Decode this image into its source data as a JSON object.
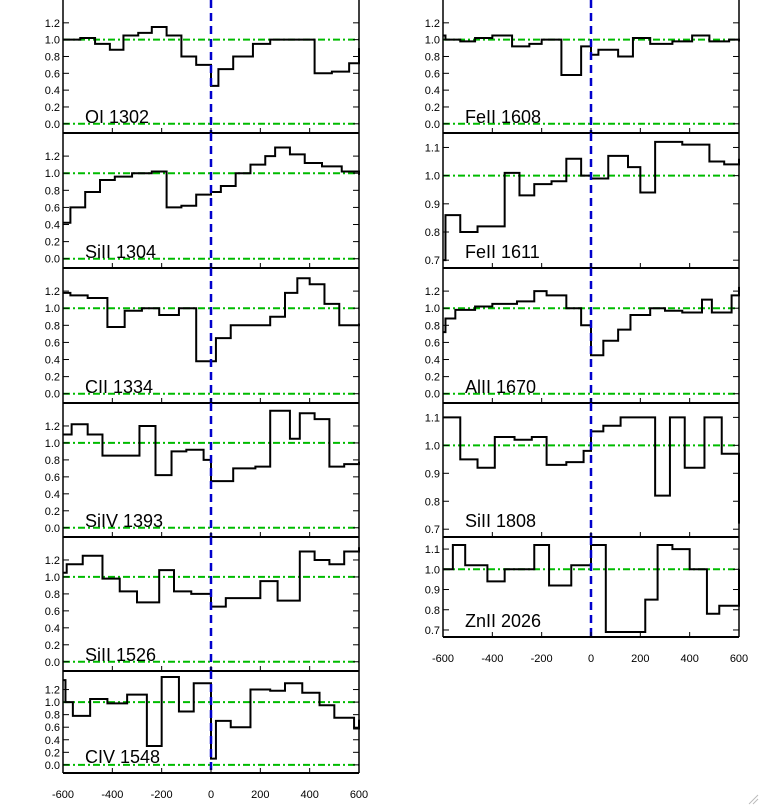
{
  "colors": {
    "spectrum": "#000000",
    "continuum": "#00bb00",
    "zero_velocity": "#0000cc",
    "axis": "#000000"
  },
  "chart_data": [
    {
      "type": "line",
      "label": "OI 1302",
      "yticks": [
        0.0,
        0.2,
        0.4,
        0.6,
        0.8,
        1.0,
        1.2
      ],
      "ytick_labels": [
        "0.0",
        "0.2",
        "0.4",
        "0.6",
        "0.8",
        "1.0",
        "1.2"
      ],
      "ylim": [
        -0.05,
        1.4
      ],
      "xlim": [
        -600,
        600
      ],
      "show_xticks": false,
      "x": [
        -600,
        -530,
        -470,
        -410,
        -355,
        -295,
        -240,
        -180,
        -120,
        -60,
        0,
        30,
        90,
        170,
        240,
        330,
        420,
        490,
        560,
        600
      ],
      "y": [
        1.0,
        1.02,
        0.95,
        0.88,
        1.05,
        1.08,
        1.15,
        1.05,
        0.8,
        0.7,
        0.45,
        0.65,
        0.8,
        0.95,
        1.0,
        1.0,
        0.6,
        0.62,
        0.72,
        0.9
      ]
    },
    {
      "type": "line",
      "label": "SiII 1304",
      "yticks": [
        0.0,
        0.2,
        0.4,
        0.6,
        0.8,
        1.0,
        1.2
      ],
      "ytick_labels": [
        "0.0",
        "0.2",
        "0.4",
        "0.6",
        "0.8",
        "1.0",
        "1.2"
      ],
      "ylim": [
        -0.05,
        1.4
      ],
      "xlim": [
        -600,
        600
      ],
      "show_xticks": false,
      "x": [
        -600,
        -570,
        -510,
        -450,
        -390,
        -320,
        -240,
        -180,
        -120,
        -60,
        0,
        40,
        100,
        160,
        220,
        260,
        320,
        380,
        450,
        530,
        600
      ],
      "y": [
        0.42,
        0.6,
        0.78,
        0.92,
        0.96,
        1.0,
        1.02,
        0.6,
        0.62,
        0.75,
        0.78,
        0.85,
        1.0,
        1.1,
        1.2,
        1.3,
        1.22,
        1.12,
        1.08,
        1.02,
        0.98
      ]
    },
    {
      "type": "line",
      "label": "CII 1334",
      "yticks": [
        0.0,
        0.2,
        0.4,
        0.6,
        0.8,
        1.0,
        1.2
      ],
      "ytick_labels": [
        "0.0",
        "0.2",
        "0.4",
        "0.6",
        "0.8",
        "1.0",
        "1.2"
      ],
      "ylim": [
        -0.05,
        1.4
      ],
      "xlim": [
        -600,
        600
      ],
      "show_xticks": false,
      "x": [
        -600,
        -570,
        -500,
        -420,
        -350,
        -280,
        -210,
        -130,
        -60,
        0,
        20,
        80,
        160,
        240,
        300,
        350,
        400,
        460,
        520,
        600
      ],
      "y": [
        1.18,
        1.15,
        1.12,
        0.78,
        0.97,
        1.0,
        0.92,
        1.0,
        0.38,
        0.38,
        0.65,
        0.8,
        0.8,
        0.9,
        1.18,
        1.35,
        1.28,
        1.05,
        0.8,
        0.82
      ]
    },
    {
      "type": "line",
      "label": "SiIV 1393",
      "yticks": [
        0.0,
        0.2,
        0.4,
        0.6,
        0.8,
        1.0,
        1.2
      ],
      "ytick_labels": [
        "0.0",
        "0.2",
        "0.4",
        "0.6",
        "0.8",
        "1.0",
        "1.2"
      ],
      "ylim": [
        -0.05,
        1.4
      ],
      "xlim": [
        -600,
        600
      ],
      "show_xticks": false,
      "x": [
        -600,
        -565,
        -500,
        -440,
        -360,
        -290,
        -225,
        -160,
        -100,
        -30,
        0,
        30,
        90,
        180,
        240,
        320,
        360,
        420,
        480,
        540,
        600
      ],
      "y": [
        1.1,
        1.22,
        1.1,
        0.85,
        0.85,
        1.2,
        0.62,
        0.9,
        0.92,
        0.8,
        0.55,
        0.55,
        0.7,
        0.72,
        1.38,
        1.05,
        1.35,
        1.28,
        0.72,
        0.75,
        0.78
      ]
    },
    {
      "type": "line",
      "label": "SiII 1526",
      "yticks": [
        0.0,
        0.2,
        0.4,
        0.6,
        0.8,
        1.0,
        1.2
      ],
      "ytick_labels": [
        "0.0",
        "0.2",
        "0.4",
        "0.6",
        "0.8",
        "1.0",
        "1.2"
      ],
      "ylim": [
        -0.05,
        1.4
      ],
      "xlim": [
        -600,
        600
      ],
      "show_xticks": false,
      "x": [
        -600,
        -585,
        -520,
        -440,
        -370,
        -300,
        -210,
        -150,
        -80,
        0,
        60,
        130,
        200,
        270,
        360,
        420,
        480,
        540,
        600
      ],
      "y": [
        1.05,
        1.15,
        1.25,
        0.98,
        0.83,
        0.7,
        1.08,
        0.83,
        0.8,
        0.65,
        0.75,
        0.75,
        0.95,
        0.72,
        1.3,
        1.2,
        1.15,
        1.3,
        1.35
      ]
    },
    {
      "type": "line",
      "label": "CIV 1548",
      "yticks": [
        0.0,
        0.2,
        0.4,
        0.6,
        0.8,
        1.0,
        1.2
      ],
      "ytick_labels": [
        "0.0",
        "0.2",
        "0.4",
        "0.6",
        "0.8",
        "1.0",
        "1.2"
      ],
      "ylim": [
        -0.05,
        1.4
      ],
      "xlim": [
        -600,
        600
      ],
      "show_xticks": true,
      "xticks": [
        -600,
        -400,
        -200,
        0,
        200,
        400,
        600
      ],
      "xtick_labels": [
        "-600",
        "-400",
        "-200",
        "0",
        "200",
        "400",
        "600"
      ],
      "x": [
        -600,
        -590,
        -560,
        -490,
        -420,
        -340,
        -260,
        -200,
        -130,
        -70,
        0,
        20,
        80,
        160,
        240,
        300,
        370,
        440,
        500,
        580,
        600
      ],
      "y": [
        1.35,
        1.0,
        0.78,
        1.05,
        0.98,
        1.12,
        0.3,
        1.4,
        0.85,
        1.3,
        0.1,
        0.7,
        0.6,
        1.2,
        1.18,
        1.3,
        1.15,
        0.95,
        0.75,
        0.58,
        0.72
      ]
    },
    {
      "type": "line",
      "label": "FeII 1608",
      "yticks": [
        0.0,
        0.2,
        0.4,
        0.6,
        0.8,
        1.0,
        1.2
      ],
      "ytick_labels": [
        "0.0",
        "0.2",
        "0.4",
        "0.6",
        "0.8",
        "1.0",
        "1.2"
      ],
      "ylim": [
        -0.05,
        1.4
      ],
      "xlim": [
        -600,
        600
      ],
      "show_xticks": false,
      "x": [
        -600,
        -590,
        -530,
        -470,
        -400,
        -320,
        -250,
        -200,
        -120,
        -40,
        0,
        30,
        110,
        170,
        240,
        330,
        410,
        480,
        560,
        600
      ],
      "y": [
        1.05,
        1.0,
        0.98,
        1.02,
        1.05,
        0.92,
        0.95,
        1.0,
        0.58,
        0.92,
        0.82,
        0.88,
        0.8,
        1.02,
        0.95,
        0.98,
        1.05,
        0.98,
        1.0,
        0.98
      ]
    },
    {
      "type": "line",
      "label": "FeII 1611",
      "yticks": [
        0.7,
        0.8,
        0.9,
        1.0,
        1.1
      ],
      "ytick_labels": [
        "0.7",
        "0.8",
        "0.9",
        "1.0",
        "1.1"
      ],
      "ylim": [
        0.69,
        1.13
      ],
      "xlim": [
        -600,
        600
      ],
      "show_xticks": false,
      "x": [
        -600,
        -590,
        -530,
        -460,
        -350,
        -290,
        -230,
        -160,
        -100,
        -40,
        0,
        70,
        150,
        200,
        260,
        310,
        370,
        480,
        540,
        600
      ],
      "y": [
        0.7,
        0.86,
        0.8,
        0.82,
        1.01,
        0.93,
        0.97,
        0.98,
        1.06,
        1.0,
        0.99,
        1.07,
        1.03,
        0.94,
        1.12,
        1.12,
        1.11,
        1.05,
        1.04,
        1.06
      ]
    },
    {
      "type": "line",
      "label": "AlII 1670",
      "yticks": [
        0.0,
        0.2,
        0.4,
        0.6,
        0.8,
        1.0,
        1.2
      ],
      "ytick_labels": [
        "0.0",
        "0.2",
        "0.4",
        "0.6",
        "0.8",
        "1.0",
        "1.2"
      ],
      "ylim": [
        -0.05,
        1.4
      ],
      "xlim": [
        -600,
        600
      ],
      "show_xticks": false,
      "x": [
        -600,
        -590,
        -550,
        -470,
        -400,
        -300,
        -230,
        -180,
        -100,
        -40,
        0,
        50,
        110,
        160,
        240,
        300,
        370,
        450,
        490,
        570,
        600
      ],
      "y": [
        0.72,
        0.88,
        0.98,
        1.02,
        1.05,
        1.08,
        1.2,
        1.15,
        1.0,
        0.8,
        0.45,
        0.62,
        0.75,
        0.92,
        1.0,
        0.97,
        0.95,
        1.1,
        0.95,
        1.15,
        1.25
      ]
    },
    {
      "type": "line",
      "label": "SiII 1808",
      "yticks": [
        0.7,
        0.8,
        0.9,
        1.0,
        1.1
      ],
      "ytick_labels": [
        "0.7",
        "0.8",
        "0.9",
        "1.0",
        "1.1"
      ],
      "ylim": [
        0.69,
        1.13
      ],
      "xlim": [
        -600,
        600
      ],
      "show_xticks": false,
      "x": [
        -600,
        -530,
        -460,
        -390,
        -310,
        -240,
        -180,
        -100,
        -30,
        0,
        50,
        120,
        220,
        260,
        320,
        380,
        460,
        530,
        600
      ],
      "y": [
        1.1,
        0.95,
        0.92,
        1.03,
        1.02,
        1.03,
        0.93,
        0.94,
        0.98,
        1.05,
        1.07,
        1.1,
        1.1,
        0.82,
        1.1,
        0.92,
        1.1,
        0.97,
        0.72
      ]
    },
    {
      "type": "line",
      "label": "ZnII 2026",
      "yticks": [
        0.7,
        0.8,
        0.9,
        1.0,
        1.1
      ],
      "ytick_labels": [
        "0.7",
        "0.8",
        "0.9",
        "1.0",
        "1.1"
      ],
      "ylim": [
        0.69,
        1.13
      ],
      "xlim": [
        -600,
        600
      ],
      "show_xticks": true,
      "xticks": [
        -600,
        -400,
        -200,
        0,
        200,
        400,
        600
      ],
      "xtick_labels": [
        "-600",
        "-400",
        "-200",
        "0",
        "200",
        "400",
        "600"
      ],
      "x": [
        -600,
        -560,
        -510,
        -420,
        -350,
        -230,
        -170,
        -80,
        0,
        60,
        150,
        220,
        270,
        330,
        400,
        470,
        520,
        600
      ],
      "y": [
        1.0,
        1.12,
        1.02,
        0.94,
        1.0,
        1.12,
        0.92,
        1.02,
        1.12,
        0.69,
        0.69,
        0.85,
        1.12,
        1.1,
        1.0,
        0.78,
        0.82,
        1.0
      ]
    }
  ]
}
